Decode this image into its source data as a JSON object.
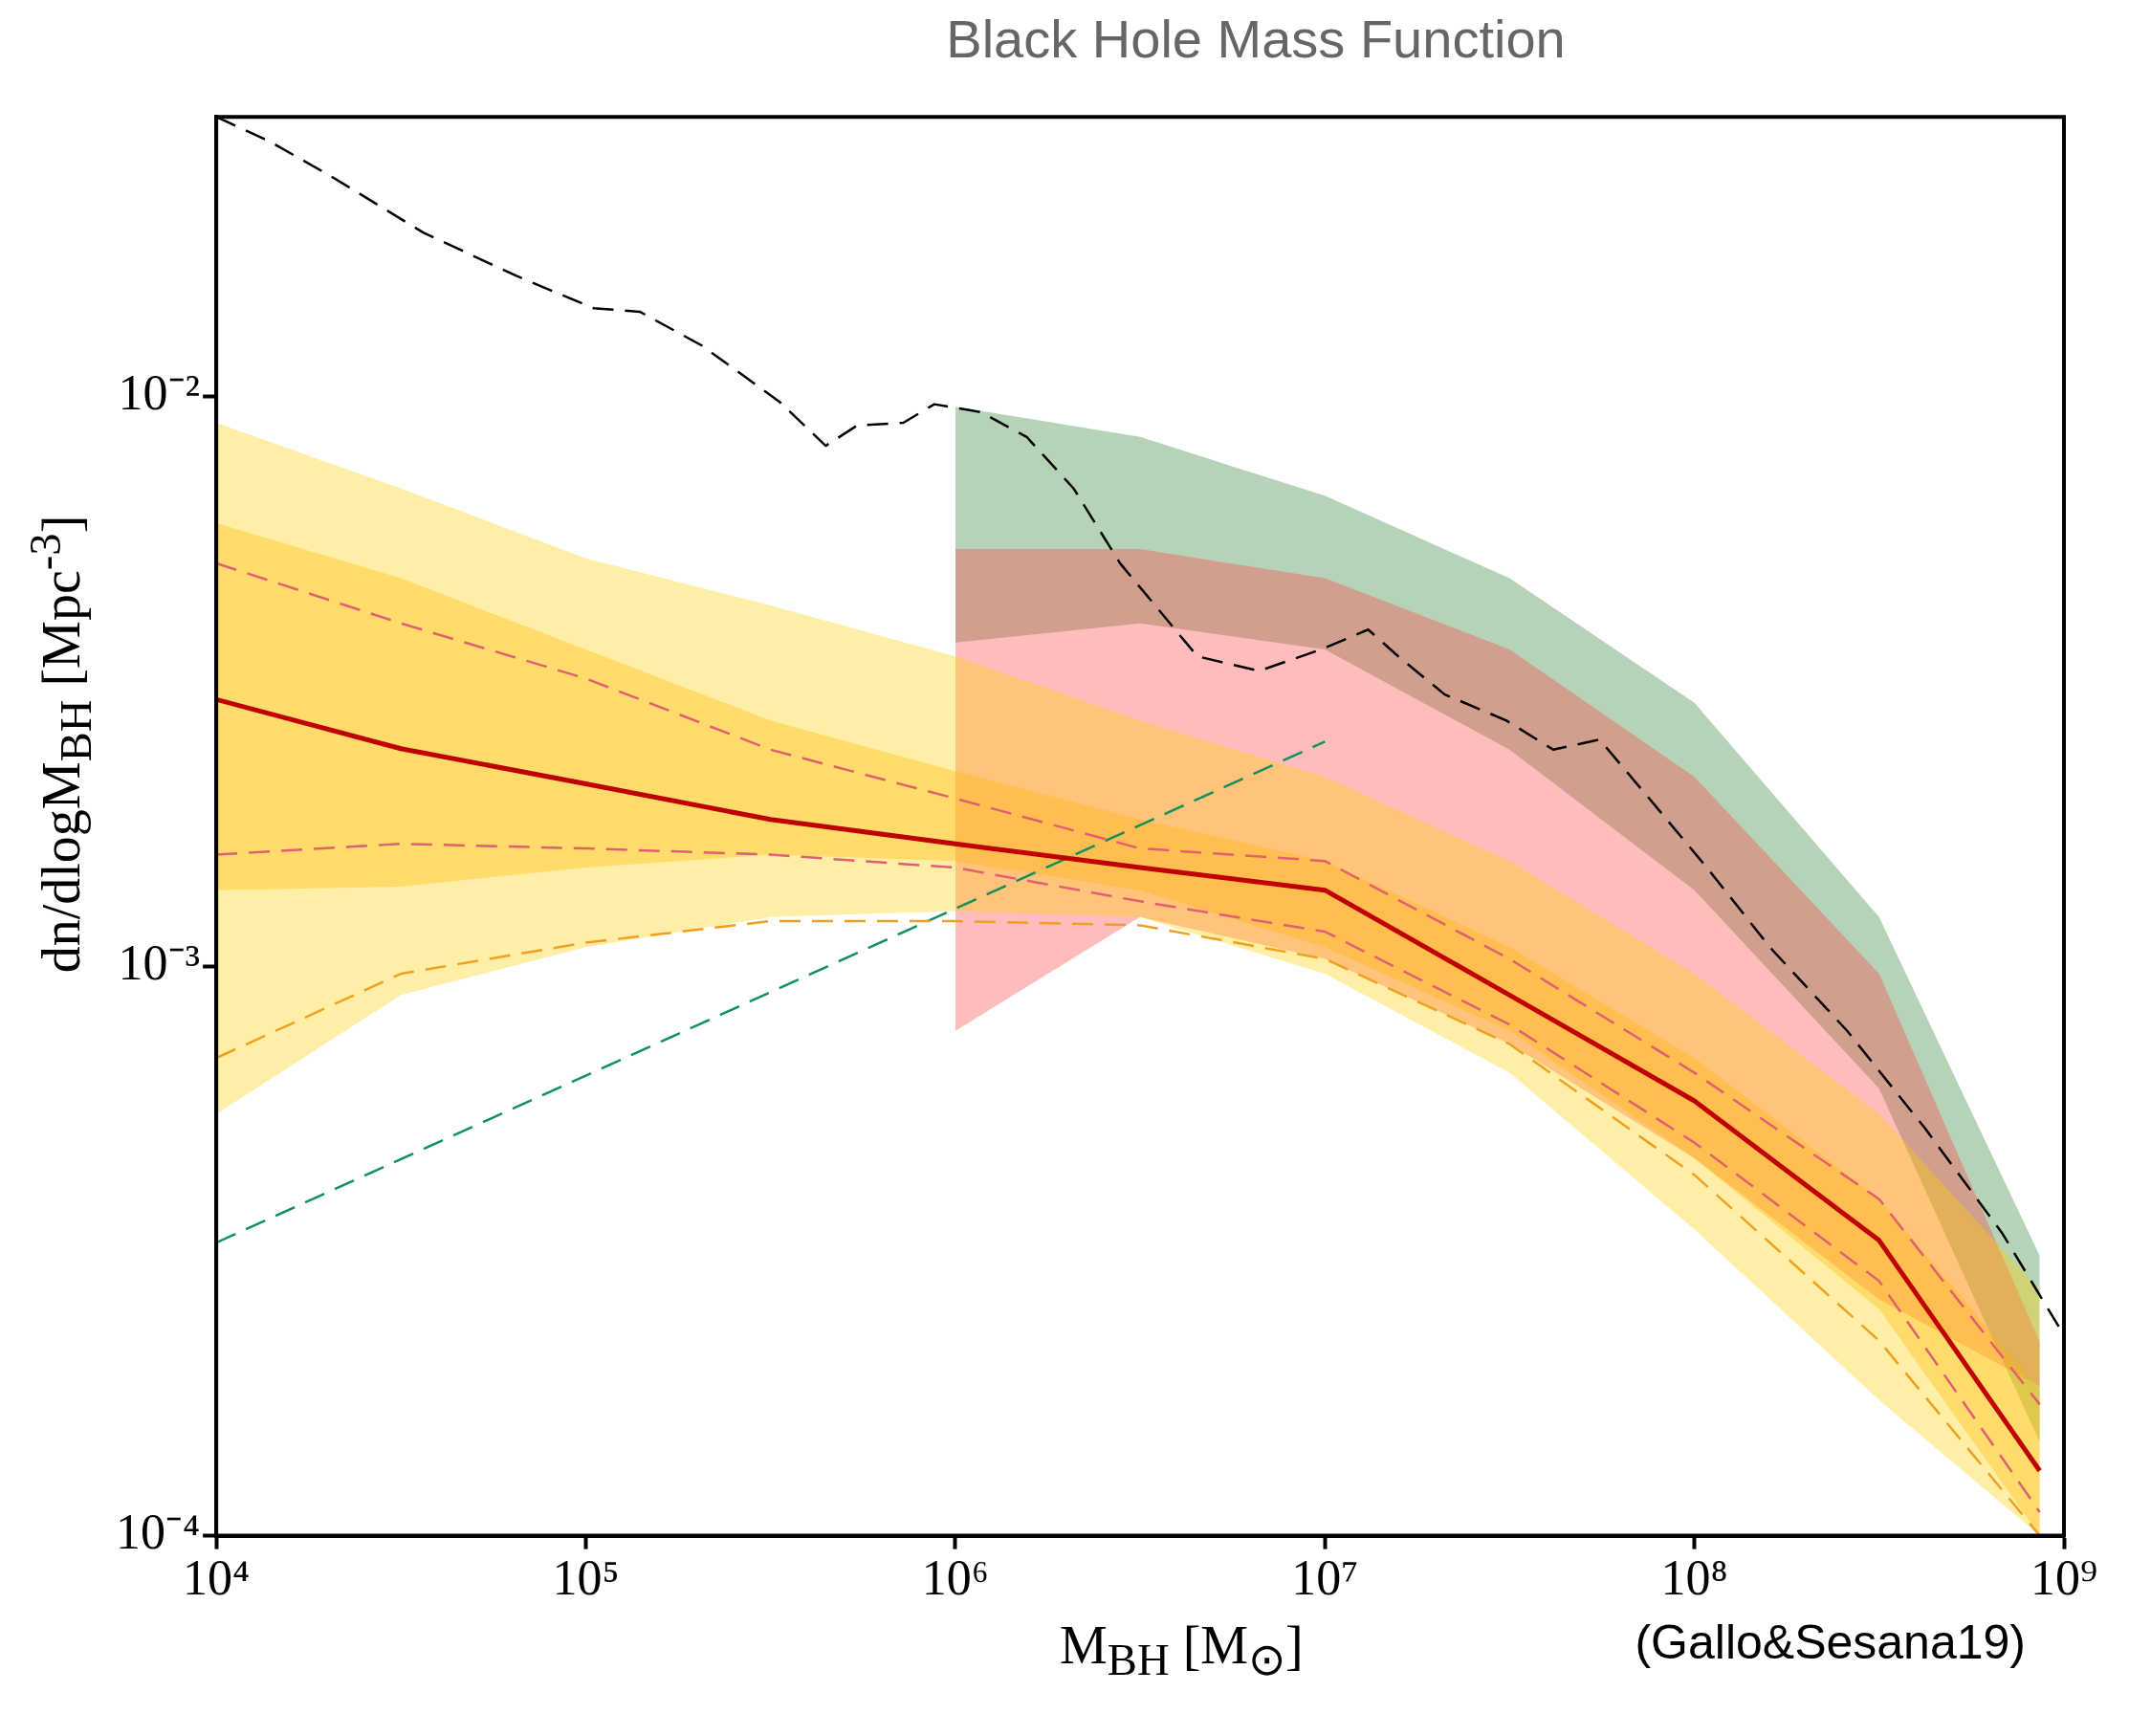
{
  "chart_data": {
    "type": "line",
    "title": "Black Hole Mass Function",
    "xlabel": "M$_{BH}$ [M$_{⊙}$]",
    "ylabel": "dn/dlogM$_{BH}$ [Mpc$^{-3}$]",
    "annotations": [
      "(Gallo&Sesana19)"
    ],
    "log": "xy",
    "grid": false,
    "legend": false,
    "xlim": [
      10000,
      1000000000
    ],
    "ylim": [
      0.0001,
      0.031
    ],
    "xticks": [
      {
        "value": 10000,
        "label": "10⁴"
      },
      {
        "value": 100000,
        "label": "10⁵"
      },
      {
        "value": 1000000,
        "label": "10⁶"
      },
      {
        "value": 10000000,
        "label": "10⁷"
      },
      {
        "value": 100000000,
        "label": "10⁸"
      },
      {
        "value": 1000000000,
        "label": "10⁹"
      }
    ],
    "yticks": [
      {
        "value": 0.0001,
        "label": "10⁻⁴"
      },
      {
        "value": 0.001,
        "label": "10⁻³"
      },
      {
        "value": 0.01,
        "label": "10⁻²"
      }
    ],
    "x": [
      10000,
      31600,
      100000,
      316000,
      1000000,
      3160000,
      10000000,
      31600000,
      100000000,
      316000000,
      860000000
    ],
    "series": [
      {
        "type": "area",
        "color": "#ffd000",
        "values": [
          null,
          null,
          null,
          null,
          null,
          null,
          null,
          null,
          null,
          null,
          null
        ],
        "upper": [
          0.009,
          0.0069,
          0.0052,
          0.0043,
          0.0035,
          0.0027,
          0.00215,
          0.00153,
          0.00097,
          0.00055,
          0.00027
        ],
        "lower": [
          0.00055,
          0.00089,
          0.00108,
          0.00122,
          0.00125,
          0.00122,
          0.00097,
          0.00065,
          0.000345,
          0.000173,
          0.0001
        ]
      },
      {
        "type": "area",
        "color": "#ffa500",
        "values": [
          null,
          null,
          null,
          null,
          null,
          null,
          null,
          null,
          null,
          null,
          null
        ],
        "upper": [
          0.006,
          0.0048,
          0.0036,
          0.0027,
          0.0022,
          0.00181,
          0.00153,
          0.00108,
          0.00069,
          0.00039,
          0.00018
        ],
        "lower": [
          0.00136,
          0.00138,
          0.00149,
          0.00157,
          0.00153,
          0.00136,
          0.00108,
          0.00077,
          0.00046,
          0.00025,
          0.0001
        ]
      },
      {
        "type": "area",
        "color": "#ff4040",
        "x": [
          1000000,
          3160000,
          10000000,
          31600000,
          100000000,
          316000000,
          860000000
        ],
        "values": [
          null,
          null,
          null,
          null,
          null,
          null,
          null
        ],
        "upper": [
          0.0054,
          0.0054,
          0.0048,
          0.0036,
          0.00215,
          0.00097,
          0.000219
        ],
        "lower": [
          0.00077,
          0.00122,
          0.00103,
          0.00073,
          0.00046,
          0.00026,
          0.000183
        ]
      },
      {
        "type": "area",
        "color": "#308030",
        "x": [
          1000000,
          3160000,
          10000000,
          31600000,
          100000000,
          316000000,
          860000000
        ],
        "values": [
          null,
          null,
          null,
          null,
          null,
          null,
          null
        ],
        "upper": [
          0.0096,
          0.0085,
          0.0067,
          0.0048,
          0.0029,
          0.00122,
          0.00031
        ],
        "lower": [
          0.0037,
          0.004,
          0.0036,
          0.0024,
          0.00136,
          0.00061,
          0.000146
        ]
      },
      {
        "type": "line",
        "color": "#f0a020",
        "line_style": "dashed",
        "values": [
          0.00069,
          0.00097,
          0.0011,
          0.0012,
          0.0012,
          0.00118,
          0.00103,
          0.00073,
          0.00043,
          0.00022,
          0.0001
        ]
      },
      {
        "type": "line",
        "color": "#e06070",
        "line_style": "dashed",
        "values": [
          0.0051,
          0.004,
          0.0032,
          0.0024,
          0.00197,
          0.00161,
          0.00153,
          0.00103,
          0.00065,
          0.00039,
          0.00017
        ]
      },
      {
        "type": "line",
        "color": "#e06070",
        "line_style": "dashed",
        "values": [
          0.00157,
          0.00164,
          0.00161,
          0.00157,
          0.00149,
          0.0013,
          0.00115,
          0.00079,
          0.00049,
          0.00028,
          0.00011
        ]
      },
      {
        "type": "line",
        "color": "#c00000",
        "line_style": "solid",
        "values": [
          0.00294,
          0.00241,
          0.00209,
          0.00181,
          0.00164,
          0.00149,
          0.00136,
          0.00089,
          0.00058,
          0.00033,
          0.00013
        ]
      },
      {
        "type": "line",
        "color": "#109060",
        "line_style": "dashed",
        "x": [
          10000,
          10000000
        ],
        "values": [
          0.000327,
          0.00248
        ]
      },
      {
        "type": "line",
        "color": "#000000",
        "line_style": "dashed",
        "x": [
          10000,
          13900,
          20400,
          36400,
          64900,
          105000,
          140000,
          206000,
          334000,
          446000,
          542000,
          723000,
          877000,
          1170000,
          1560000,
          2090000,
          2790000,
          4520000,
          6640000,
          9770000,
          13100000,
          15800000,
          21100000,
          31000000,
          41500000,
          55400000,
          74000000,
          109000000,
          160000000,
          259000000,
          420000000,
          680000000,
          1000000000
        ],
        "values": [
          0.031,
          0.0281,
          0.0244,
          0.0194,
          0.0163,
          0.0143,
          0.0141,
          0.0123,
          0.0098,
          0.0082,
          0.0089,
          0.009,
          0.0097,
          0.0094,
          0.0085,
          0.0069,
          0.0051,
          0.0035,
          0.0033,
          0.0036,
          0.0039,
          0.0035,
          0.003,
          0.0027,
          0.0024,
          0.0025,
          0.002,
          0.00148,
          0.00108,
          0.00077,
          0.00052,
          0.00034,
          0.000225
        ]
      }
    ]
  }
}
